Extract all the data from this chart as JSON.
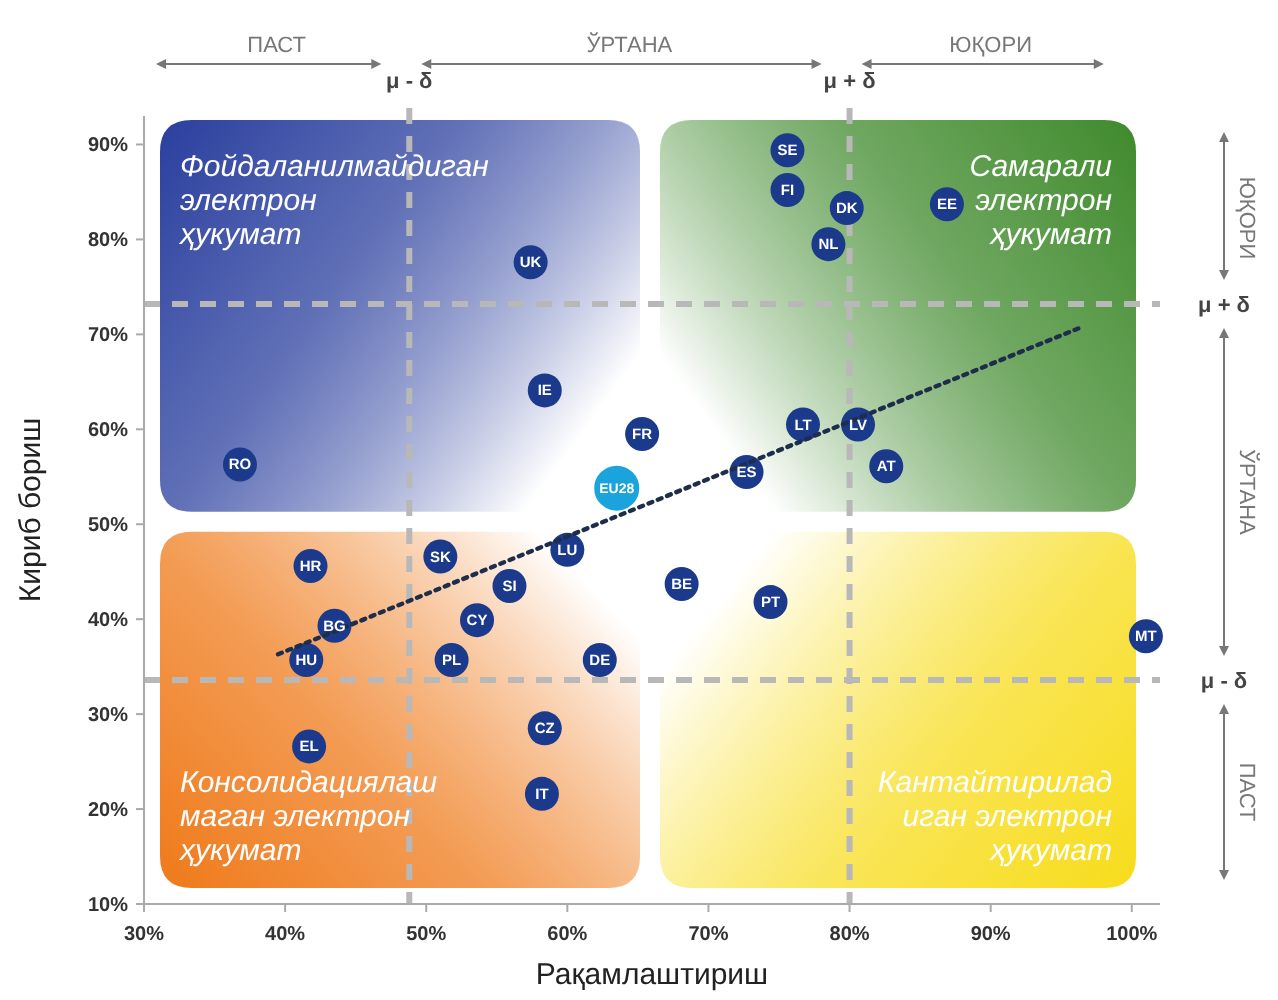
{
  "chart_data": {
    "type": "scatter",
    "xlabel": "Рақамлаштириш",
    "ylabel": "Кириб бориш",
    "xlim": [
      30,
      102
    ],
    "xticks": [
      {
        "value": 30,
        "label": "30%"
      },
      {
        "value": 40,
        "label": "40%"
      },
      {
        "value": 50,
        "label": "50%"
      },
      {
        "value": 60,
        "label": "60%"
      },
      {
        "value": 70,
        "label": "70%"
      },
      {
        "value": 80,
        "label": "80%"
      },
      {
        "value": 90,
        "label": "90%"
      },
      {
        "value": 100,
        "label": "100%"
      }
    ],
    "ylim": [
      10,
      93
    ],
    "yticks": [
      {
        "value": 10,
        "label": "10%"
      },
      {
        "value": 20,
        "label": "20%"
      },
      {
        "value": 30,
        "label": "30%"
      },
      {
        "value": 40,
        "label": "40%"
      },
      {
        "value": 50,
        "label": "50%"
      },
      {
        "value": 60,
        "label": "60%"
      },
      {
        "value": 70,
        "label": "70%"
      },
      {
        "value": 80,
        "label": "80%"
      },
      {
        "value": 90,
        "label": "90%"
      }
    ],
    "grid": false,
    "marker": "circle",
    "series": [
      {
        "color": "#1b3a8c",
        "x": [
          75.6,
          75.6,
          79.8,
          78.5,
          86.9,
          57.4,
          58.4,
          65.3,
          36.8,
          76.7,
          80.6,
          72.7,
          82.6,
          51,
          60,
          41.8,
          55.9,
          68.1,
          53.6,
          43.5,
          74.4,
          101,
          41.5,
          51.8,
          62.3,
          41.7,
          58.4,
          58.2
        ],
        "values": [
          89.4,
          85.2,
          83.3,
          79.5,
          83.7,
          77.6,
          64.1,
          59.5,
          56.3,
          60.5,
          60.5,
          55.5,
          56.1,
          46.6,
          47.3,
          45.6,
          43.5,
          43.7,
          39.9,
          39.3,
          41.8,
          38.2,
          35.7,
          35.7,
          35.7,
          26.6,
          28.5,
          21.6
        ]
      },
      {
        "color": "#1aa3dc",
        "x": [
          63.5
        ],
        "values": [
          53.8
        ]
      },
      {
        "type": "line",
        "color": "#1e2d4a",
        "line_style": "dotted",
        "marker": "none",
        "x": [
          39.5,
          96.5
        ],
        "values": [
          36.3,
          70.8
        ]
      }
    ],
    "ref_lines": [
      {
        "axis": "x",
        "value": 48.8,
        "label": "μ - δ",
        "color": "#b8b8b8",
        "line_style": "dashed"
      },
      {
        "axis": "x",
        "value": 80,
        "label": "μ + δ",
        "color": "#b8b8b8",
        "line_style": "dashed"
      },
      {
        "axis": "y",
        "value": 73.2,
        "label": "μ + δ",
        "color": "#b8b8b8",
        "line_style": "dashed"
      },
      {
        "axis": "y",
        "value": 33.6,
        "label": "μ - δ",
        "color": "#b8b8b8",
        "line_style": "dashed"
      }
    ],
    "annotations": [
      "ПАСТ",
      "ЎРТАНА",
      "ЮҚОРИ",
      "ЮҚОРИ",
      "ЎРТАНА",
      "ПАСТ",
      "Фойдаланилмайдиган\nэлектрон\nҳукумат",
      "Самарали\nэлектрон\nҳукумат",
      "Консолидациялаш\nмаган электрон\nҳукумат",
      "Кантайтирилад\nиган электрон\nҳукумат",
      {
        "text": "SE",
        "x": 75.6,
        "y": 89.4
      },
      {
        "text": "FI",
        "x": 75.6,
        "y": 85.2
      },
      {
        "text": "DK",
        "x": 79.8,
        "y": 83.3
      },
      {
        "text": "NL",
        "x": 78.5,
        "y": 79.5
      },
      {
        "text": "EE",
        "x": 86.9,
        "y": 83.7
      },
      {
        "text": "UK",
        "x": 57.4,
        "y": 77.6
      },
      {
        "text": "IE",
        "x": 58.4,
        "y": 64.1
      },
      {
        "text": "FR",
        "x": 65.3,
        "y": 59.5
      },
      {
        "text": "RO",
        "x": 36.8,
        "y": 56.3
      },
      {
        "text": "LT",
        "x": 76.7,
        "y": 60.5
      },
      {
        "text": "LV",
        "x": 80.6,
        "y": 60.5
      },
      {
        "text": "ES",
        "x": 72.7,
        "y": 55.5
      },
      {
        "text": "AT",
        "x": 82.6,
        "y": 56.1
      },
      {
        "text": "SK",
        "x": 51,
        "y": 46.6
      },
      {
        "text": "LU",
        "x": 60,
        "y": 47.3
      },
      {
        "text": "HR",
        "x": 41.8,
        "y": 45.6
      },
      {
        "text": "SI",
        "x": 55.9,
        "y": 43.5
      },
      {
        "text": "BE",
        "x": 68.1,
        "y": 43.7
      },
      {
        "text": "CY",
        "x": 53.6,
        "y": 39.9
      },
      {
        "text": "BG",
        "x": 43.5,
        "y": 39.3
      },
      {
        "text": "PT",
        "x": 74.4,
        "y": 41.8
      },
      {
        "text": "MT",
        "x": 101,
        "y": 38.2
      },
      {
        "text": "HU",
        "x": 41.5,
        "y": 35.7
      },
      {
        "text": "PL",
        "x": 51.8,
        "y": 35.7
      },
      {
        "text": "DE",
        "x": 62.3,
        "y": 35.7
      },
      {
        "text": "EL",
        "x": 41.7,
        "y": 26.6
      },
      {
        "text": "CZ",
        "x": 58.4,
        "y": 28.5
      },
      {
        "text": "IT",
        "x": 58.2,
        "y": 21.6
      },
      {
        "text": "EU28",
        "x": 63.5,
        "y": 53.8
      }
    ]
  }
}
